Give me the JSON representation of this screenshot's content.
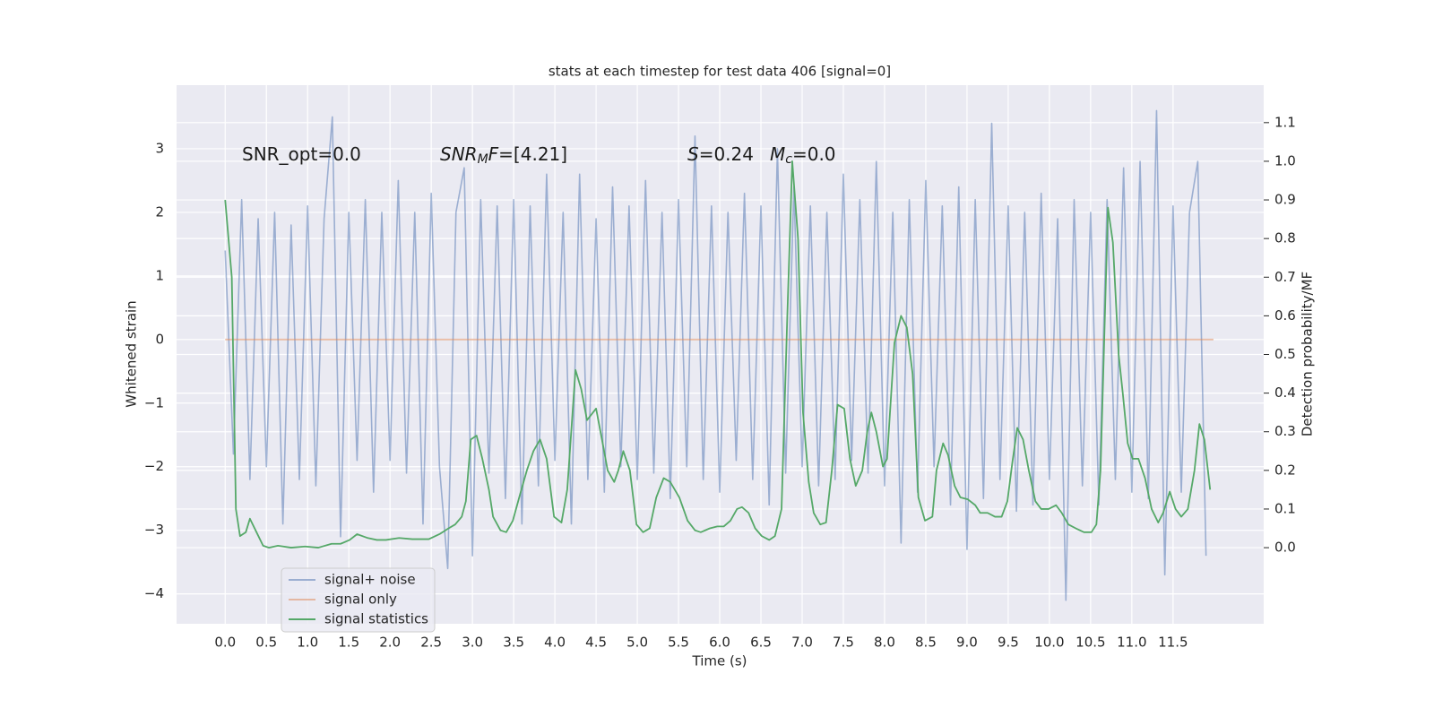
{
  "chart_data": {
    "type": "line",
    "title": "stats at each timestep for test data 406 [signal=0]",
    "xlabel": "Time (s)",
    "ylabel": "Whitened strain",
    "y2label": "Detection probability/MF",
    "annotations": [
      [
        "SNR_opt=0.0"
      ],
      [
        "SNR",
        "M",
        "F",
        "=[4.21]"
      ],
      [
        "S",
        "=0.24"
      ],
      [
        "M",
        "c",
        "=0.0"
      ]
    ],
    "xlim": [
      -0.59,
      12.6
    ],
    "ylim": [
      -4.47,
      4.0
    ],
    "y2lim": [
      -0.197,
      1.197
    ],
    "xticks": [
      {
        "value": 0,
        "label": "0.0"
      },
      {
        "value": 0.5,
        "label": "0.5"
      },
      {
        "value": 1,
        "label": "1.0"
      },
      {
        "value": 1.5,
        "label": "1.5"
      },
      {
        "value": 2,
        "label": "2.0"
      },
      {
        "value": 2.5,
        "label": "2.5"
      },
      {
        "value": 3,
        "label": "3.0"
      },
      {
        "value": 3.5,
        "label": "3.5"
      },
      {
        "value": 4,
        "label": "4.0"
      },
      {
        "value": 4.5,
        "label": "4.5"
      },
      {
        "value": 5,
        "label": "5.0"
      },
      {
        "value": 5.5,
        "label": "5.5"
      },
      {
        "value": 6,
        "label": "6.0"
      },
      {
        "value": 6.5,
        "label": "6.5"
      },
      {
        "value": 7,
        "label": "7.0"
      },
      {
        "value": 7.5,
        "label": "7.5"
      },
      {
        "value": 8,
        "label": "8.0"
      },
      {
        "value": 8.5,
        "label": "8.5"
      },
      {
        "value": 9,
        "label": "9.0"
      },
      {
        "value": 9.5,
        "label": "9.5"
      },
      {
        "value": 10,
        "label": "10.0"
      },
      {
        "value": 10.5,
        "label": "10.5"
      },
      {
        "value": 11,
        "label": "11.0"
      },
      {
        "value": 11.5,
        "label": "11.5"
      }
    ],
    "yticks": [
      {
        "value": -4,
        "label": "−4"
      },
      {
        "value": -3,
        "label": "−3"
      },
      {
        "value": -2,
        "label": "−2"
      },
      {
        "value": -1,
        "label": "−1"
      },
      0,
      1,
      2,
      3
    ],
    "y2ticks": [
      {
        "value": 0,
        "label": "0.0"
      },
      {
        "value": 0.1,
        "label": "0.1"
      },
      {
        "value": 0.2,
        "label": "0.2"
      },
      {
        "value": 0.3,
        "label": "0.3"
      },
      {
        "value": 0.4,
        "label": "0.4"
      },
      {
        "value": 0.5,
        "label": "0.5"
      },
      {
        "value": 0.6,
        "label": "0.6"
      },
      {
        "value": 0.7,
        "label": "0.7"
      },
      {
        "value": 0.8,
        "label": "0.8"
      },
      {
        "value": 0.9,
        "label": "0.9"
      },
      {
        "value": 1,
        "label": "1.0"
      },
      {
        "value": 1.1,
        "label": "1.1"
      }
    ],
    "grid": true,
    "legend": "lower left",
    "series": [
      {
        "name": "signal+ noise",
        "color": "#4c72b0",
        "axis": "y",
        "x": [
          0,
          0.1,
          0.2,
          0.3,
          0.4,
          0.5,
          0.6,
          0.7,
          0.8,
          0.9,
          1,
          1.1,
          1.2,
          1.3,
          1.4,
          1.5,
          1.6,
          1.7,
          1.8,
          1.9,
          2,
          2.1,
          2.2,
          2.3,
          2.4,
          2.5,
          2.6,
          2.7,
          2.8,
          2.9,
          3,
          3.1,
          3.2,
          3.3,
          3.4,
          3.5,
          3.6,
          3.7,
          3.8,
          3.9,
          4,
          4.1,
          4.2,
          4.3,
          4.4,
          4.5,
          4.6,
          4.7,
          4.8,
          4.9,
          5,
          5.1,
          5.2,
          5.3,
          5.4,
          5.5,
          5.6,
          5.7,
          5.8,
          5.9,
          6,
          6.1,
          6.2,
          6.3,
          6.4,
          6.5,
          6.6,
          6.7,
          6.8,
          6.9,
          7,
          7.1,
          7.2,
          7.3,
          7.4,
          7.5,
          7.6,
          7.7,
          7.8,
          7.9,
          8,
          8.1,
          8.2,
          8.3,
          8.4,
          8.5,
          8.6,
          8.7,
          8.8,
          8.9,
          9,
          9.1,
          9.2,
          9.3,
          9.4,
          9.5,
          9.6,
          9.7,
          9.8,
          9.9,
          10,
          10.1,
          10.2,
          10.3,
          10.4,
          10.5,
          10.6,
          10.7,
          10.8,
          10.9,
          11,
          11.1,
          11.2,
          11.3,
          11.4,
          11.5,
          11.6,
          11.7,
          11.8,
          11.9
        ],
        "values": [
          1.4,
          -1.8,
          2.2,
          -2.2,
          1.9,
          -2.0,
          2.0,
          -2.9,
          1.8,
          -2.2,
          2.1,
          -2.3,
          1.9,
          3.5,
          -3.1,
          2.0,
          -1.9,
          2.2,
          -2.4,
          2.0,
          -1.9,
          2.5,
          -2.1,
          2.0,
          -2.9,
          2.3,
          -2.0,
          -3.6,
          2.0,
          2.7,
          -3.4,
          2.2,
          -2.1,
          2.1,
          -2.5,
          2.2,
          -2.9,
          2.1,
          -2.3,
          2.6,
          -1.9,
          2.0,
          -2.9,
          2.6,
          -2.2,
          1.9,
          -2.4,
          2.4,
          -2.0,
          2.1,
          -2.2,
          2.5,
          -2.1,
          2.0,
          -2.5,
          2.2,
          -2.0,
          3.2,
          -2.2,
          2.1,
          -2.4,
          2.0,
          -1.9,
          2.3,
          -2.2,
          2.1,
          -2.6,
          3.0,
          -2.1,
          2.4,
          -2.0,
          2.1,
          -2.3,
          2.0,
          -2.2,
          2.6,
          -1.9,
          2.2,
          -2.1,
          2.8,
          -2.3,
          2.0,
          -3.2,
          2.2,
          -2.4,
          2.5,
          -2.0,
          2.1,
          -2.6,
          2.4,
          -3.3,
          2.2,
          -2.5,
          3.4,
          -2.2,
          2.1,
          -2.7,
          2.0,
          -2.6,
          2.3,
          -2.2,
          1.9,
          -4.1,
          2.2,
          -2.3,
          2.0,
          -2.6,
          2.2,
          -2.2,
          2.7,
          -2.4,
          2.8,
          -2.5,
          3.6,
          -3.7,
          2.1,
          -2.4,
          2.0,
          2.8,
          -3.4
        ]
      },
      {
        "name": "signal only",
        "color": "#dd8452",
        "axis": "y",
        "x": [
          0,
          11.99
        ],
        "values": [
          0,
          0
        ]
      },
      {
        "name": "signal statistics",
        "color": "#55a868",
        "axis": "y2",
        "x": [
          0,
          0.08,
          0.13,
          0.18,
          0.25,
          0.3,
          0.38,
          0.46,
          0.53,
          0.64,
          0.8,
          0.97,
          1.13,
          1.29,
          1.4,
          1.51,
          1.6,
          1.73,
          1.84,
          1.95,
          2.11,
          2.27,
          2.47,
          2.6,
          2.71,
          2.79,
          2.87,
          2.92,
          2.98,
          3.05,
          3.12,
          3.2,
          3.25,
          3.34,
          3.41,
          3.49,
          3.58,
          3.66,
          3.74,
          3.82,
          3.9,
          3.99,
          4.08,
          4.15,
          4.25,
          4.32,
          4.39,
          4.5,
          4.58,
          4.64,
          4.72,
          4.77,
          4.83,
          4.91,
          4.99,
          5.07,
          5.15,
          5.23,
          5.32,
          5.4,
          5.51,
          5.61,
          5.7,
          5.77,
          5.88,
          5.97,
          6.05,
          6.13,
          6.21,
          6.27,
          6.35,
          6.43,
          6.51,
          6.6,
          6.67,
          6.75,
          6.82,
          6.88,
          6.95,
          7.01,
          7.08,
          7.14,
          7.22,
          7.29,
          7.36,
          7.43,
          7.51,
          7.58,
          7.65,
          7.73,
          7.79,
          7.84,
          7.9,
          7.98,
          8.03,
          8.12,
          8.2,
          8.27,
          8.34,
          8.41,
          8.49,
          8.58,
          8.63,
          8.71,
          8.77,
          8.85,
          8.92,
          9.01,
          9.1,
          9.16,
          9.25,
          9.34,
          9.42,
          9.49,
          9.55,
          9.61,
          9.68,
          9.75,
          9.83,
          9.9,
          9.99,
          10.08,
          10.15,
          10.23,
          10.32,
          10.42,
          10.51,
          10.57,
          10.62,
          10.66,
          10.71,
          10.77,
          10.84,
          10.89,
          10.95,
          11.01,
          11.08,
          11.16,
          11.24,
          11.32,
          11.38,
          11.46,
          11.53,
          11.6,
          11.68,
          11.76,
          11.82,
          11.88,
          11.95
        ],
        "values": [
          0.9,
          0.7,
          0.1,
          0.03,
          0.04,
          0.075,
          0.04,
          0.005,
          0,
          0.005,
          0,
          0.003,
          0,
          0.01,
          0.01,
          0.02,
          0.035,
          0.025,
          0.02,
          0.02,
          0.025,
          0.022,
          0.022,
          0.035,
          0.05,
          0.06,
          0.08,
          0.12,
          0.28,
          0.29,
          0.23,
          0.15,
          0.08,
          0.045,
          0.04,
          0.07,
          0.14,
          0.2,
          0.25,
          0.28,
          0.23,
          0.08,
          0.065,
          0.15,
          0.46,
          0.41,
          0.33,
          0.36,
          0.27,
          0.2,
          0.17,
          0.2,
          0.25,
          0.2,
          0.06,
          0.04,
          0.05,
          0.13,
          0.18,
          0.17,
          0.13,
          0.07,
          0.045,
          0.04,
          0.05,
          0.055,
          0.055,
          0.07,
          0.1,
          0.105,
          0.09,
          0.05,
          0.03,
          0.02,
          0.03,
          0.1,
          0.6,
          1.0,
          0.8,
          0.35,
          0.17,
          0.09,
          0.06,
          0.065,
          0.2,
          0.37,
          0.36,
          0.23,
          0.16,
          0.2,
          0.3,
          0.35,
          0.3,
          0.21,
          0.23,
          0.53,
          0.6,
          0.57,
          0.45,
          0.13,
          0.07,
          0.08,
          0.2,
          0.27,
          0.24,
          0.16,
          0.13,
          0.125,
          0.11,
          0.09,
          0.09,
          0.08,
          0.08,
          0.12,
          0.22,
          0.31,
          0.28,
          0.2,
          0.12,
          0.1,
          0.1,
          0.11,
          0.09,
          0.06,
          0.05,
          0.04,
          0.04,
          0.06,
          0.2,
          0.5,
          0.88,
          0.79,
          0.5,
          0.4,
          0.27,
          0.23,
          0.23,
          0.18,
          0.1,
          0.065,
          0.09,
          0.145,
          0.1,
          0.08,
          0.1,
          0.2,
          0.32,
          0.28,
          0.15
        ]
      }
    ]
  }
}
